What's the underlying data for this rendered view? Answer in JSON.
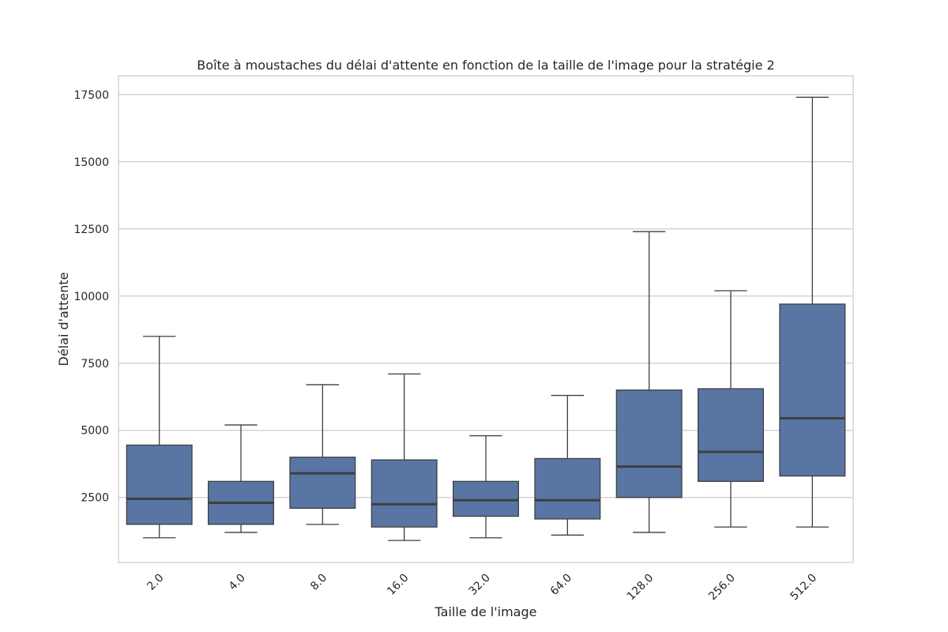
{
  "chart_data": {
    "type": "box",
    "title": "Boîte à moustaches du délai d'attente en fonction de la taille de l'image pour la stratégie 2",
    "xlabel": "Taille de l'image",
    "ylabel": "Délai d'attente",
    "categories": [
      "2.0",
      "4.0",
      "8.0",
      "16.0",
      "32.0",
      "64.0",
      "128.0",
      "256.0",
      "512.0"
    ],
    "boxes": [
      {
        "whisker_low": 1000,
        "q1": 1500,
        "median": 2450,
        "q3": 4450,
        "whisker_high": 8500
      },
      {
        "whisker_low": 1200,
        "q1": 1500,
        "median": 2300,
        "q3": 3100,
        "whisker_high": 5200
      },
      {
        "whisker_low": 1500,
        "q1": 2100,
        "median": 3400,
        "q3": 4000,
        "whisker_high": 6700
      },
      {
        "whisker_low": 900,
        "q1": 1400,
        "median": 2250,
        "q3": 3900,
        "whisker_high": 7100
      },
      {
        "whisker_low": 1000,
        "q1": 1800,
        "median": 2400,
        "q3": 3100,
        "whisker_high": 4800
      },
      {
        "whisker_low": 1100,
        "q1": 1700,
        "median": 2400,
        "q3": 3950,
        "whisker_high": 6300
      },
      {
        "whisker_low": 1200,
        "q1": 2500,
        "median": 3650,
        "q3": 6500,
        "whisker_high": 12400
      },
      {
        "whisker_low": 1400,
        "q1": 3100,
        "median": 4200,
        "q3": 6550,
        "whisker_high": 10200
      },
      {
        "whisker_low": 1400,
        "q1": 3300,
        "median": 5450,
        "q3": 9700,
        "whisker_high": 17400
      }
    ],
    "yticks": [
      2500,
      5000,
      7500,
      10000,
      12500,
      15000,
      17500
    ],
    "ylim": [
      80,
      18200
    ],
    "grid": true,
    "colors": {
      "box_fill": "#5975a4",
      "line": "#3f3f3f",
      "grid": "#cccccc",
      "frame": "#cccccc"
    }
  }
}
